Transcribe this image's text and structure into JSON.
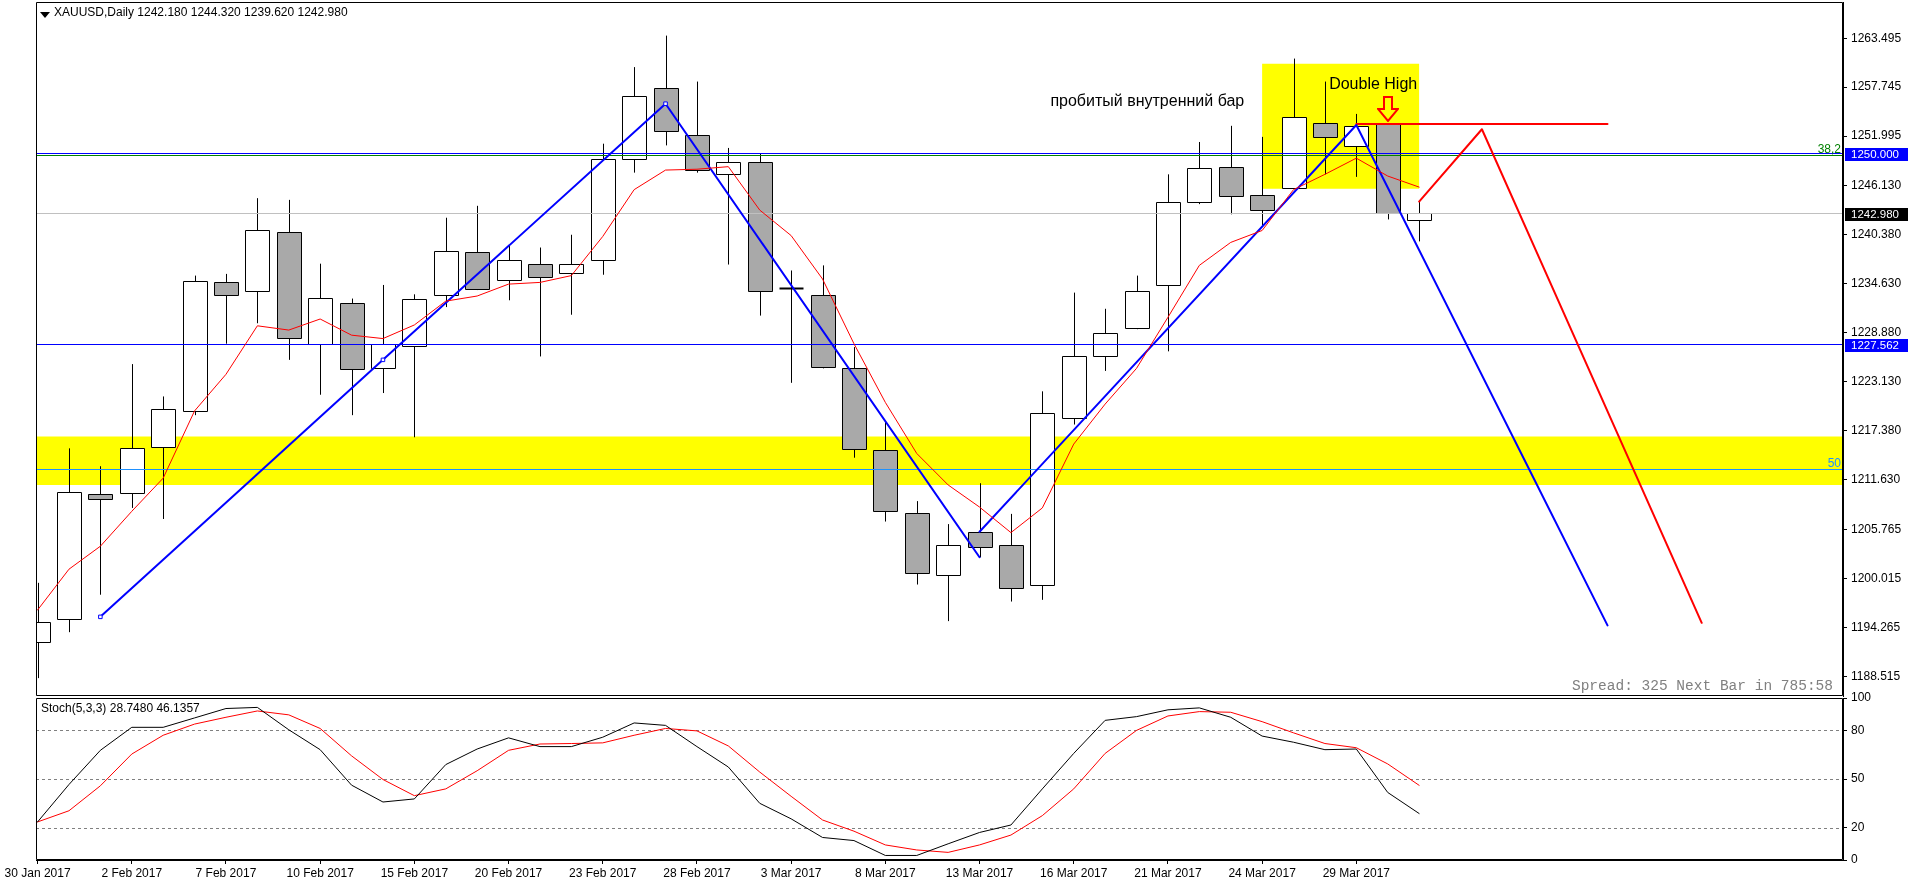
{
  "chart_data": [
    {
      "type": "candlestick",
      "title": "XAUUSD,Daily 1242.180 1244.320 1239.620 1242.980",
      "categories": [
        null,
        null,
        null,
        null,
        null,
        null,
        null,
        null,
        null,
        null,
        null,
        null,
        null,
        null,
        null,
        null,
        null,
        null,
        null,
        null,
        null,
        null,
        null,
        null,
        null,
        null,
        null,
        null,
        null,
        null,
        null,
        null,
        null,
        null,
        null,
        null,
        null,
        null,
        null,
        null,
        null,
        null,
        null,
        null,
        null,
        null,
        null,
        null,
        null,
        null,
        null,
        null,
        null,
        null,
        null,
        null,
        null,
        null
      ],
      "ohlc": [
        [
          1192.5,
          1199.5,
          1188.3,
          1194.9
        ],
        [
          1195.3,
          1215.3,
          1193.7,
          1210.2
        ],
        [
          1209.9,
          1213.2,
          1198.1,
          1209.3
        ],
        [
          1210.1,
          1225.2,
          1208.3,
          1215.4
        ],
        [
          1215.4,
          1221.4,
          1207.0,
          1219.9
        ],
        [
          1219.7,
          1235.6,
          1219.2,
          1235.0
        ],
        [
          1234.9,
          1235.8,
          1227.6,
          1233.4
        ],
        [
          1233.7,
          1244.7,
          1230.0,
          1240.9
        ],
        [
          1240.7,
          1244.5,
          1225.7,
          1228.3
        ],
        [
          1227.6,
          1237.0,
          1221.6,
          1233.0
        ],
        [
          1232.4,
          1232.9,
          1219.2,
          1224.7
        ],
        [
          1224.8,
          1234.5,
          1221.8,
          1227.6
        ],
        [
          1227.4,
          1233.4,
          1216.6,
          1232.9
        ],
        [
          1233.3,
          1242.4,
          1231.9,
          1238.5
        ],
        [
          1238.4,
          1243.8,
          1233.9,
          1234.0
        ],
        [
          1235.0,
          1239.1,
          1232.7,
          1237.4
        ],
        [
          1237.0,
          1238.9,
          1226.1,
          1235.5
        ],
        [
          1236.0,
          1240.4,
          1231.0,
          1237.0
        ],
        [
          1237.4,
          1251.1,
          1235.7,
          1249.3
        ],
        [
          1249.3,
          1260.1,
          1247.7,
          1256.7
        ],
        [
          1257.6,
          1263.8,
          1250.9,
          1252.5
        ],
        [
          1252.1,
          1258.4,
          1247.7,
          1248.0
        ],
        [
          1247.6,
          1250.6,
          1236.9,
          1249.0
        ],
        [
          1249.0,
          1249.9,
          1230.9,
          1233.8
        ],
        [
          1234.1,
          1236.2,
          1223.0,
          1234.1
        ],
        [
          1233.3,
          1236.8,
          1224.7,
          1224.8
        ],
        [
          1224.7,
          1227.2,
          1214.2,
          1215.2
        ],
        [
          1215.1,
          1218.4,
          1206.7,
          1207.9
        ],
        [
          1207.7,
          1209.1,
          1199.3,
          1200.7
        ],
        [
          1200.5,
          1206.4,
          1195.0,
          1204.0
        ],
        [
          1205.5,
          1211.2,
          1202.5,
          1203.7
        ],
        [
          1203.9,
          1207.6,
          1197.3,
          1198.8
        ],
        [
          1199.3,
          1222.0,
          1197.5,
          1219.5
        ],
        [
          1218.8,
          1233.6,
          1218.1,
          1226.1
        ],
        [
          1226.2,
          1231.7,
          1224.4,
          1228.9
        ],
        [
          1229.4,
          1235.6,
          1229.3,
          1233.8
        ],
        [
          1234.5,
          1247.5,
          1226.7,
          1244.2
        ],
        [
          1244.3,
          1251.3,
          1244.0,
          1248.3
        ],
        [
          1248.4,
          1253.2,
          1242.8,
          1245.0
        ],
        [
          1245.1,
          1251.9,
          1241.5,
          1243.3
        ],
        [
          1245.9,
          1261.1,
          1245.9,
          1254.2
        ],
        [
          1253.5,
          1258.4,
          1247.5,
          1251.8
        ],
        [
          1250.8,
          1254.6,
          1247.2,
          1253.2
        ],
        [
          1253.4,
          1253.4,
          1242.2,
          1242.9
        ],
        [
          1242.18,
          1244.32,
          1239.62,
          1242.98
        ],
        null,
        null,
        null,
        null,
        null,
        null,
        null,
        null,
        null,
        null,
        null,
        null,
        null
      ],
      "color": "#000000",
      "colors": [
        "#ffffff",
        "#ffffff",
        "#a9a9a9",
        "#ffffff",
        "#ffffff",
        "#ffffff",
        "#a9a9a9",
        "#ffffff",
        "#a9a9a9",
        "#ffffff",
        "#a9a9a9",
        "#ffffff",
        "#ffffff",
        "#ffffff",
        "#a9a9a9",
        "#ffffff",
        "#a9a9a9",
        "#ffffff",
        "#ffffff",
        "#ffffff",
        "#a9a9a9",
        "#a9a9a9",
        "#ffffff",
        "#a9a9a9",
        "#000000",
        "#a9a9a9",
        "#a9a9a9",
        "#a9a9a9",
        "#a9a9a9",
        "#ffffff",
        "#a9a9a9",
        "#a9a9a9",
        "#ffffff",
        "#ffffff",
        "#ffffff",
        "#ffffff",
        "#ffffff",
        "#ffffff",
        "#a9a9a9",
        "#a9a9a9",
        "#ffffff",
        "#a9a9a9",
        "#ffffff",
        "#a9a9a9",
        "#ffffff",
        null,
        null,
        null,
        null,
        null,
        null,
        null,
        null,
        null,
        null,
        null,
        null,
        null
      ],
      "ylim": [
        1186.2,
        1267.75
      ],
      "yticks": [
        1188.515,
        1194.265,
        1200.015,
        1205.765,
        {
          "value": 1211.63,
          "label": "1211.630"
        },
        {
          "value": 1217.38,
          "label": "1217.380"
        },
        {
          "value": 1223.13,
          "label": "1223.130"
        },
        {
          "value": 1228.88,
          "label": "1228.880"
        },
        {
          "value": 1234.63,
          "label": "1234.630"
        },
        {
          "value": 1240.38,
          "label": "1240.380"
        },
        {
          "value": 1246.13,
          "label": "1246.130"
        },
        1251.995,
        1257.745,
        1263.495
      ],
      "tick_labels": "y",
      "series": [
        {
          "type": "line",
          "color": "#ffff00",
          "values": [
            null,
            null,
            null,
            null,
            null,
            null,
            null,
            null,
            null,
            null,
            null,
            null,
            null,
            null,
            null,
            null,
            null,
            null,
            null,
            null,
            null,
            null,
            null,
            null,
            null,
            null,
            null,
            null,
            null,
            null,
            null,
            null,
            null,
            null,
            null,
            null,
            null,
            null,
            null,
            null,
            null,
            null,
            null,
            null,
            null,
            null,
            null,
            null,
            null,
            null,
            null,
            null,
            null,
            null,
            null,
            null,
            null,
            null
          ],
          "upper": [
            null,
            null,
            null,
            null,
            null,
            null,
            null,
            null,
            null,
            null,
            null,
            null,
            null,
            null,
            null,
            null,
            null,
            null,
            null,
            null,
            null,
            null,
            null,
            null,
            null,
            null,
            null,
            null,
            null,
            null,
            null,
            null,
            null,
            null,
            null,
            null,
            null,
            null,
            null,
            1260.5,
            1260.5,
            1260.5,
            1260.5,
            1260.5,
            1260.5,
            null,
            null,
            null,
            null,
            null,
            null,
            null,
            null,
            null,
            null,
            null,
            null,
            null
          ],
          "lower": [
            null,
            null,
            null,
            null,
            null,
            null,
            null,
            null,
            null,
            null,
            null,
            null,
            null,
            null,
            null,
            null,
            null,
            null,
            null,
            null,
            null,
            null,
            null,
            null,
            null,
            null,
            null,
            null,
            null,
            null,
            null,
            null,
            null,
            null,
            null,
            null,
            null,
            null,
            null,
            1245.8,
            1245.8,
            1245.8,
            1245.8,
            1245.8,
            1245.8,
            null,
            null,
            null,
            null,
            null,
            null,
            null,
            null,
            null,
            null,
            null,
            null,
            null
          ]
        },
        {
          "type": "line",
          "color": "#ff0000",
          "values": [
            1196.3,
            1201.1,
            1203.8,
            1207.9,
            1211.8,
            1219.7,
            1224.0,
            1229.7,
            1229.2,
            1230.5,
            1228.6,
            1228.2,
            1229.8,
            1232.6,
            1233.2,
            1234.6,
            1234.8,
            1235.6,
            1240.2,
            1245.7,
            1248.0,
            1248.1,
            1248.4,
            1243.3,
            1240.3,
            1235.2,
            1227.6,
            1220.7,
            1214.7,
            1211.0,
            1208.4,
            1205.4,
            1208.3,
            1215.8,
            1220.5,
            1224.7,
            1230.7,
            1236.8,
            1239.5,
            1240.9,
            1245.7,
            1247.5,
            1249.4,
            1247.3,
            1246.0,
            null,
            null,
            null,
            null,
            null,
            null,
            null,
            null,
            null,
            null,
            null,
            null,
            null
          ]
        },
        {
          "type": "line",
          "color": "#0000ff",
          "marker": "square",
          "values": [
            null,
            null,
            1195.5,
            null,
            null,
            null,
            null,
            null,
            null,
            null,
            null,
            1225.7,
            null,
            null,
            null,
            null,
            null,
            null,
            null,
            null,
            1255.8,
            null,
            null,
            null,
            null,
            null,
            null,
            null,
            null,
            null,
            null,
            null,
            null,
            null,
            null,
            null,
            null,
            null,
            null,
            null,
            null,
            null,
            null,
            null,
            null,
            null,
            null,
            null,
            null,
            null,
            null,
            null,
            null,
            null,
            null,
            null,
            null,
            null
          ]
        },
        {
          "type": "line",
          "color": "#0000ff",
          "values": [
            null,
            null,
            null,
            null,
            null,
            null,
            null,
            null,
            null,
            null,
            null,
            null,
            null,
            null,
            null,
            null,
            null,
            null,
            null,
            null,
            1255.8,
            null,
            null,
            null,
            null,
            null,
            null,
            null,
            null,
            null,
            1202.5,
            null,
            null,
            null,
            null,
            null,
            null,
            null,
            null,
            null,
            null,
            null,
            null,
            null,
            null,
            null,
            null,
            null,
            null,
            null,
            null,
            null,
            null,
            null,
            null,
            null,
            null,
            null
          ]
        },
        {
          "type": "line",
          "color": "#0000ff",
          "values": [
            null,
            null,
            null,
            null,
            null,
            null,
            null,
            null,
            null,
            null,
            null,
            null,
            null,
            null,
            null,
            null,
            null,
            null,
            null,
            null,
            null,
            null,
            null,
            null,
            null,
            null,
            null,
            null,
            null,
            null,
            1205.5,
            null,
            null,
            null,
            null,
            null,
            null,
            null,
            null,
            null,
            null,
            null,
            1253.3,
            null,
            null,
            null,
            null,
            null,
            null,
            null,
            1194.5,
            null,
            null,
            null,
            null,
            null,
            null,
            null
          ]
        },
        {
          "type": "line",
          "color": "#ff0000",
          "values": [
            null,
            null,
            null,
            null,
            null,
            null,
            null,
            null,
            null,
            null,
            null,
            null,
            null,
            null,
            null,
            null,
            null,
            null,
            null,
            null,
            null,
            null,
            null,
            null,
            null,
            null,
            null,
            null,
            null,
            null,
            null,
            null,
            null,
            null,
            null,
            null,
            null,
            null,
            null,
            null,
            null,
            null,
            1253.4,
            null,
            null,
            null,
            null,
            null,
            null,
            null,
            1253.4,
            null,
            null,
            null,
            null,
            null,
            null,
            null
          ]
        },
        {
          "type": "line",
          "color": "#ff0000",
          "values": [
            null,
            null,
            null,
            null,
            null,
            null,
            null,
            null,
            null,
            null,
            null,
            null,
            null,
            null,
            null,
            null,
            null,
            null,
            null,
            null,
            null,
            null,
            null,
            null,
            null,
            null,
            null,
            null,
            null,
            null,
            null,
            null,
            null,
            null,
            null,
            null,
            null,
            null,
            null,
            null,
            null,
            null,
            null,
            null,
            1244.3,
            null,
            1252.8,
            null,
            null,
            null,
            null,
            null,
            null,
            1194.8,
            null,
            null,
            null,
            null
          ]
        }
      ],
      "ref_lines": [
        {
          "axis": "y",
          "value": 1250,
          "label": "1250.000",
          "color": "#0000ff"
        },
        {
          "axis": "y",
          "value": 1249.8,
          "color": "#008000"
        },
        {
          "axis": "y",
          "value": 1242.98,
          "label": "1242.980",
          "color": "#c0c0c0"
        },
        {
          "axis": "y",
          "value": 1227.562,
          "label": "1227.562",
          "color": "#0000ff"
        },
        {
          "axis": "y",
          "value": 1212.9,
          "color": "#1e90ff"
        }
      ],
      "bands": [
        {
          "axis": "y",
          "from": 1211.0,
          "to": 1216.7,
          "color": "#ffff00"
        }
      ],
      "annotations": [
        "пробитый внутренний бар",
        "Double High",
        "Spread: 325 Next Bar in 785:58",
        {
          "text": "38,2",
          "y": 1249.8
        },
        {
          "text": "50",
          "y": 1212.9
        }
      ]
    },
    {
      "type": "line",
      "title": "Stoch(5,3,3) 28.7480 46.1357",
      "categories": [
        "30 Jan 2017",
        null,
        null,
        "2 Feb 2017",
        null,
        null,
        "7 Feb 2017",
        null,
        null,
        "10 Feb 2017",
        null,
        null,
        "15 Feb 2017",
        null,
        null,
        "20 Feb 2017",
        null,
        null,
        "23 Feb 2017",
        null,
        null,
        "28 Feb 2017",
        null,
        null,
        "3 Mar 2017",
        null,
        null,
        "8 Mar 2017",
        null,
        null,
        "13 Mar 2017",
        null,
        null,
        "16 Mar 2017",
        null,
        null,
        "21 Mar 2017",
        null,
        null,
        "24 Mar 2017",
        null,
        null,
        "29 Mar 2017",
        null,
        null,
        null,
        null,
        null,
        null,
        null,
        null,
        null,
        null,
        null,
        null,
        null,
        null,
        null
      ],
      "ylim": [
        0,
        100
      ],
      "yticks": [
        0,
        20,
        50,
        80,
        100
      ],
      "series": [
        {
          "color": "#000000",
          "values": [
            23.5,
            46.6,
            67.7,
            81.9,
            81.9,
            87.7,
            93.5,
            94.2,
            80.4,
            68.1,
            46.2,
            35.8,
            37.7,
            58.9,
            68.5,
            75.4,
            70.0,
            70.0,
            75.8,
            84.6,
            83.1,
            70.0,
            57.4,
            35.0,
            25.4,
            13.9,
            12.0,
            2.8,
            2.8,
            10.0,
            17.0,
            21.6,
            43.9,
            65.8,
            86.2,
            88.5,
            92.7,
            93.9,
            88.1,
            76.5,
            72.7,
            68.1,
            68.5,
            41.7,
            28.7,
            null,
            null,
            null,
            null,
            null,
            null,
            null,
            null,
            null,
            null,
            null,
            null,
            null
          ]
        },
        {
          "color": "#ff0000",
          "values": [
            23.5,
            30.4,
            45.8,
            65.4,
            77.0,
            83.9,
            88.1,
            92.0,
            89.6,
            81.2,
            64.3,
            49.7,
            39.7,
            43.9,
            55.1,
            67.7,
            71.6,
            71.9,
            72.3,
            77.0,
            81.2,
            79.7,
            70.4,
            54.3,
            39.3,
            24.7,
            17.8,
            9.3,
            6.2,
            4.7,
            9.3,
            15.4,
            27.4,
            43.9,
            65.8,
            80.0,
            88.9,
            91.6,
            91.2,
            85.4,
            78.5,
            71.9,
            69.3,
            59.3,
            46.1,
            null,
            null,
            null,
            null,
            null,
            null,
            null,
            null,
            null,
            null,
            null,
            null,
            null
          ]
        }
      ],
      "ref_lines": [
        {
          "axis": "y",
          "value": 20,
          "color": "#808080",
          "line_style": "dashed"
        },
        {
          "axis": "y",
          "value": 50,
          "color": "#808080",
          "line_style": "dashed"
        },
        {
          "axis": "y",
          "value": 80,
          "color": "#808080",
          "line_style": "dashed"
        }
      ]
    }
  ]
}
